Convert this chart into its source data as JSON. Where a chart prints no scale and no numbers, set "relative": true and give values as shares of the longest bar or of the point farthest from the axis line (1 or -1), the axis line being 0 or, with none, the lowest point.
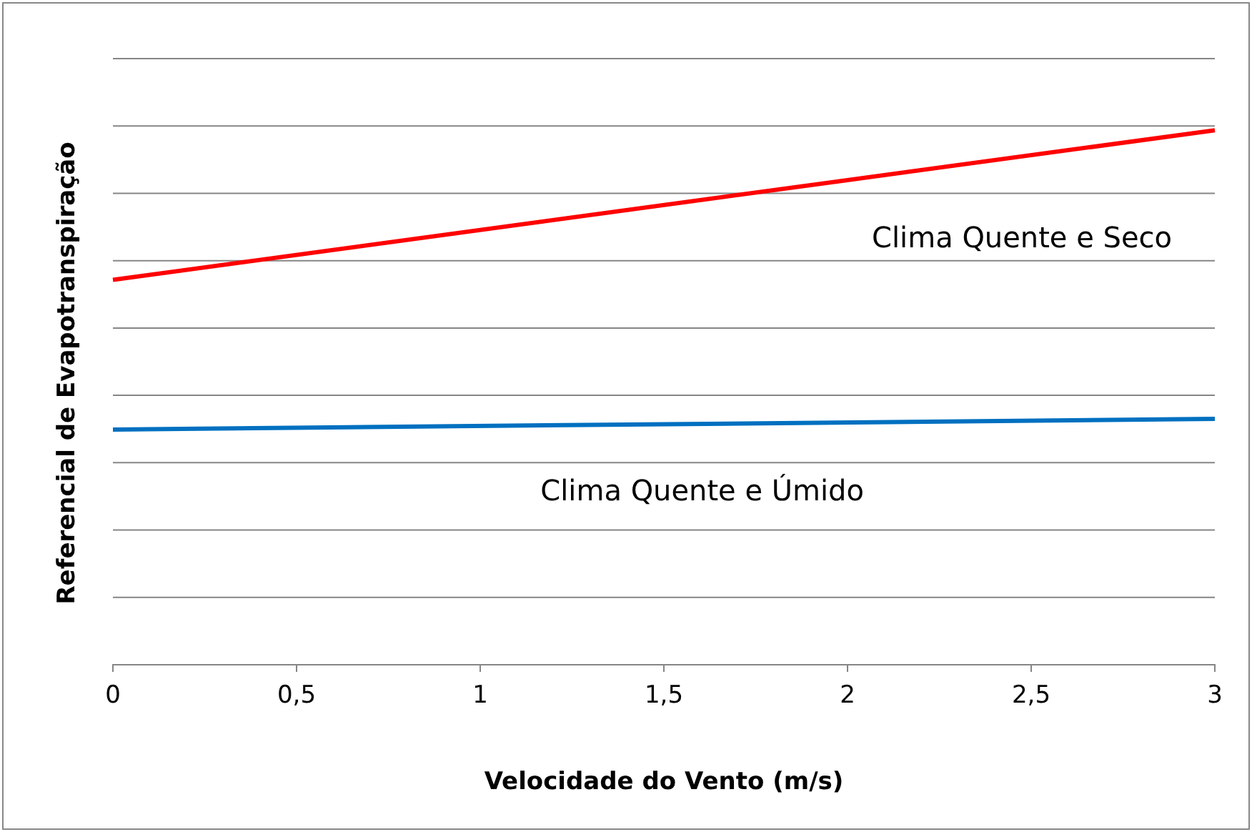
{
  "chart_data": {
    "type": "line",
    "relative": true,
    "xlabel": "Velocidade do Vento (m/s)",
    "ylabel": "Referencial de Evapotranspiração",
    "x": [
      0,
      3
    ],
    "xlim": [
      0,
      3
    ],
    "xticks": [
      0,
      {
        "value": 0.5,
        "label": "0,5"
      },
      1,
      {
        "value": 1.5,
        "label": "1,5"
      },
      2,
      {
        "value": 2.5,
        "label": "2,5"
      },
      3
    ],
    "grid": "y",
    "marker": "none",
    "line_style": "solid",
    "series": [
      {
        "name": "Clima Quente e Seco",
        "color": "#ff0000",
        "values": [
          0.72,
          1
        ]
      },
      {
        "name": "Clima Quente e Úmido",
        "color": "#0070c0",
        "values": [
          0.44,
          0.46
        ]
      }
    ]
  }
}
